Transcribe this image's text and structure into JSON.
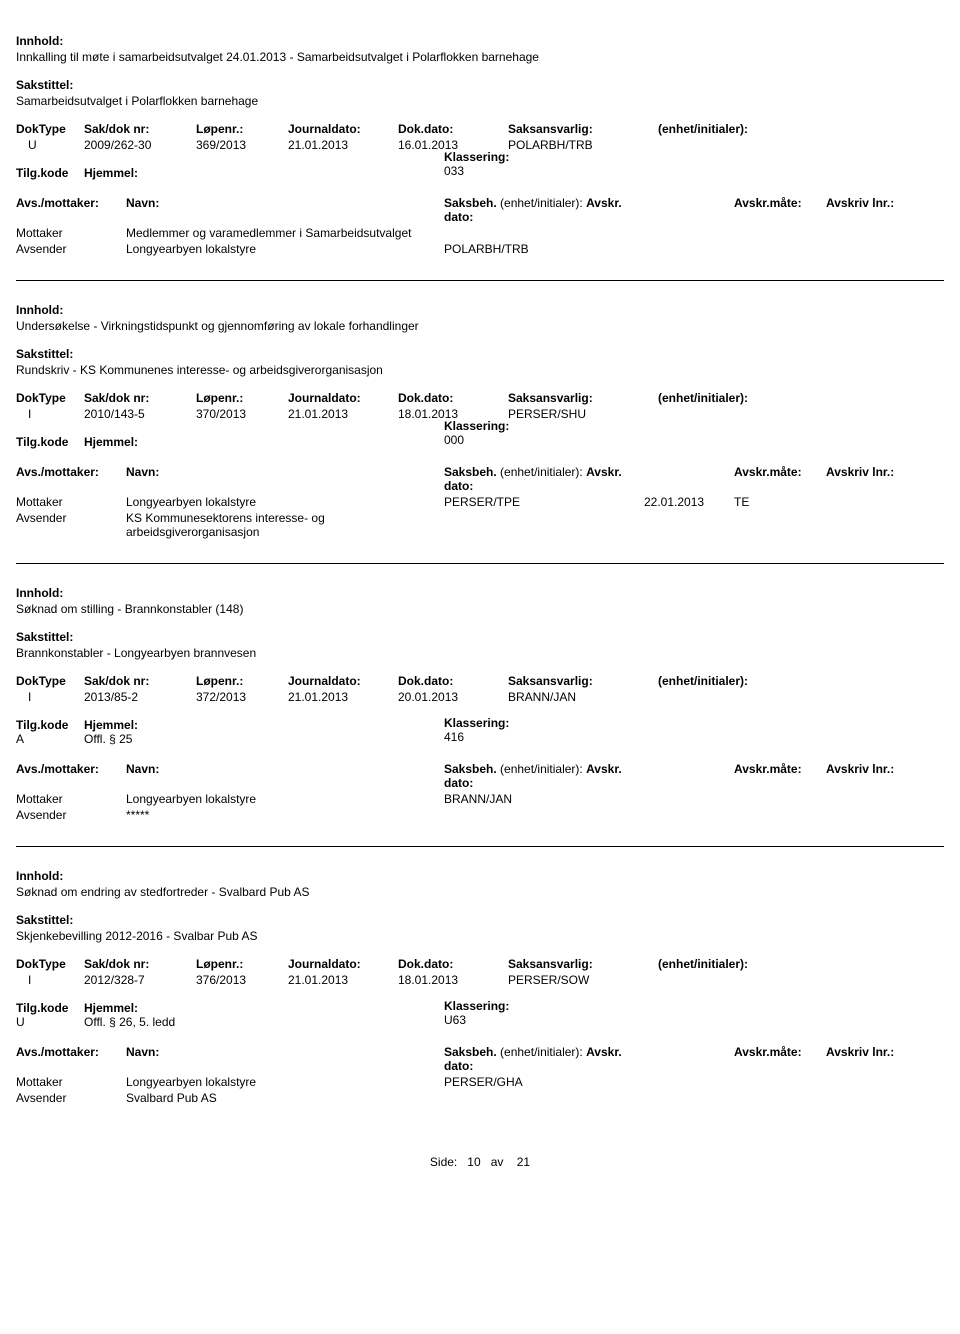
{
  "labels": {
    "innhold": "Innhold:",
    "sakstittel": "Sakstittel:",
    "doktype": "DokType",
    "sakdok": "Sak/dok nr:",
    "lopenr": "Løpenr.:",
    "journaldato": "Journaldato:",
    "dokdato": "Dok.dato:",
    "saksansvarlig": "Saksansvarlig:",
    "enhet": "(enhet/initialer):",
    "tilgkode": "Tilg.kode",
    "hjemmel": "Hjemmel:",
    "klassering": "Klassering:",
    "avs_mottaker": "Avs./mottaker:",
    "navn": "Navn:",
    "saksbeh": "Saksbeh.",
    "saksbeh_enhet": "(enhet/initialer):",
    "avskr_dato": "Avskr. dato:",
    "avskr_mate": "Avskr.måte:",
    "avskriv_lnr": "Avskriv lnr.:",
    "mottaker": "Mottaker",
    "avsender": "Avsender"
  },
  "records": [
    {
      "innhold": "Innkalling til møte i samarbeidsutvalget 24.01.2013 - Samarbeidsutvalget i Polarflokken barnehage",
      "sakstittel": "Samarbeidsutvalget i Polarflokken barnehage",
      "doktype": "U",
      "sakdok": "2009/262-30",
      "lopenr": "369/2013",
      "journaldato": "21.01.2013",
      "dokdato": "16.01.2013",
      "saksansvarlig": "POLARBH/TRB",
      "tilgkode": "",
      "hjemmel": "",
      "klassering": "033",
      "parties": [
        {
          "role": "Mottaker",
          "name": "Medlemmer og varamedlemmer i Samarbeidsutvalget",
          "saksbeh": "",
          "avskr_dato": "",
          "avskr_mate": ""
        },
        {
          "role": "Avsender",
          "name": "Longyearbyen lokalstyre",
          "saksbeh": "POLARBH/TRB",
          "avskr_dato": "",
          "avskr_mate": ""
        }
      ]
    },
    {
      "innhold": "Undersøkelse - Virkningstidspunkt og gjennomføring av lokale forhandlinger",
      "sakstittel": "Rundskriv - KS Kommunenes interesse- og arbeidsgiverorganisasjon",
      "doktype": "I",
      "sakdok": "2010/143-5",
      "lopenr": "370/2013",
      "journaldato": "21.01.2013",
      "dokdato": "18.01.2013",
      "saksansvarlig": "PERSER/SHU",
      "tilgkode": "",
      "hjemmel": "",
      "klassering": "000",
      "parties": [
        {
          "role": "Mottaker",
          "name": "Longyearbyen lokalstyre",
          "saksbeh": "PERSER/TPE",
          "avskr_dato": "22.01.2013",
          "avskr_mate": "TE"
        },
        {
          "role": "Avsender",
          "name": "KS Kommunesektorens interesse- og arbeidsgiverorganisasjon",
          "saksbeh": "",
          "avskr_dato": "",
          "avskr_mate": ""
        }
      ]
    },
    {
      "innhold": "Søknad om stilling - Brannkonstabler (148)",
      "sakstittel": "Brannkonstabler - Longyearbyen brannvesen",
      "doktype": "I",
      "sakdok": "2013/85-2",
      "lopenr": "372/2013",
      "journaldato": "21.01.2013",
      "dokdato": "20.01.2013",
      "saksansvarlig": "BRANN/JAN",
      "tilgkode": "A",
      "hjemmel": "Offl. § 25",
      "klassering": "416",
      "parties": [
        {
          "role": "Mottaker",
          "name": "Longyearbyen lokalstyre",
          "saksbeh": "BRANN/JAN",
          "avskr_dato": "",
          "avskr_mate": ""
        },
        {
          "role": "Avsender",
          "name": "*****",
          "saksbeh": "",
          "avskr_dato": "",
          "avskr_mate": ""
        }
      ]
    },
    {
      "innhold": "Søknad om endring av stedfortreder - Svalbard Pub AS",
      "sakstittel": "Skjenkebevilling 2012-2016 - Svalbar Pub AS",
      "doktype": "I",
      "sakdok": "2012/328-7",
      "lopenr": "376/2013",
      "journaldato": "21.01.2013",
      "dokdato": "18.01.2013",
      "saksansvarlig": "PERSER/SOW",
      "tilgkode": "U",
      "hjemmel": "Offl. § 26, 5. ledd",
      "klassering": "U63",
      "parties": [
        {
          "role": "Mottaker",
          "name": "Longyearbyen lokalstyre",
          "saksbeh": "PERSER/GHA",
          "avskr_dato": "",
          "avskr_mate": ""
        },
        {
          "role": "Avsender",
          "name": "Svalbard Pub AS",
          "saksbeh": "",
          "avskr_dato": "",
          "avskr_mate": ""
        }
      ]
    }
  ],
  "footer": {
    "side_label": "Side:",
    "page": "10",
    "av": "av",
    "total": "21"
  }
}
